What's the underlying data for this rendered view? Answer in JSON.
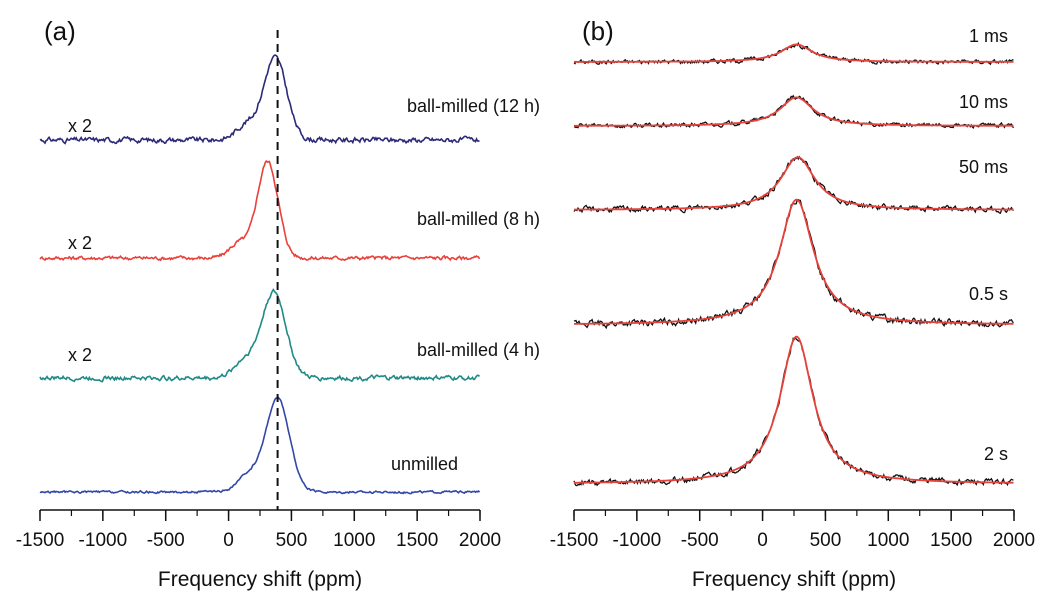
{
  "chart_data": [
    {
      "type": "line",
      "panel_label": "(a)",
      "xlabel": "Frequency shift (ppm)",
      "ylabel": "",
      "xlim": [
        -1500,
        2000
      ],
      "x_ticks": [
        -1500,
        -1000,
        -500,
        0,
        500,
        1000,
        1500,
        2000
      ],
      "x_tick_labels": [
        "-1500",
        "-1000",
        "-500",
        "0",
        "500",
        "1000",
        "1500",
        "2000"
      ],
      "reference_line_x": 390,
      "grid": false,
      "series": [
        {
          "name": "ball-milled (12 h)",
          "scale_label": "x 2",
          "color": "#2b2a78",
          "baseline": 0.82,
          "peak_x": 370,
          "amplitude": 0.75,
          "width": 210,
          "noise": 0.045,
          "shoulder": 0.18
        },
        {
          "name": "ball-milled (8 h)",
          "scale_label": "x 2",
          "color": "#e8413a",
          "baseline": 0.82,
          "peak_x": 310,
          "amplitude": 0.88,
          "width": 190,
          "noise": 0.035,
          "shoulder": 0.15
        },
        {
          "name": "ball-milled (4 h)",
          "scale_label": "x 2",
          "color": "#1f8a86",
          "baseline": 0.82,
          "peak_x": 360,
          "amplitude": 0.78,
          "width": 220,
          "noise": 0.04,
          "shoulder": 0.2
        },
        {
          "name": "unmilled",
          "scale_label": "",
          "color": "#3347a8",
          "baseline": 0.82,
          "peak_x": 390,
          "amplitude": 0.85,
          "width": 215,
          "noise": 0.02,
          "shoulder": 0.18
        }
      ]
    },
    {
      "type": "line",
      "panel_label": "(b)",
      "xlabel": "Frequency shift (ppm)",
      "ylabel": "",
      "xlim": [
        -1500,
        2000
      ],
      "x_ticks": [
        -1500,
        -1000,
        -500,
        0,
        500,
        1000,
        1500,
        2000
      ],
      "x_tick_labels": [
        "-1500",
        "-1000",
        "-500",
        "0",
        "500",
        "1000",
        "1500",
        "2000"
      ],
      "grid": false,
      "data_color": "#111111",
      "fit_color": "#e8413a",
      "series": [
        {
          "name": "1 ms",
          "peak_x": 270,
          "amplitude": 0.16,
          "width": 300,
          "noise": 0.03
        },
        {
          "name": "10 ms",
          "peak_x": 270,
          "amplitude": 0.26,
          "width": 320,
          "noise": 0.03
        },
        {
          "name": "50 ms",
          "peak_x": 280,
          "amplitude": 0.48,
          "width": 330,
          "noise": 0.035
        },
        {
          "name": "0.5 s",
          "peak_x": 270,
          "amplitude": 1.14,
          "width": 330,
          "noise": 0.035
        },
        {
          "name": "2 s",
          "peak_x": 270,
          "amplitude": 1.34,
          "width": 320,
          "noise": 0.03
        }
      ]
    }
  ]
}
